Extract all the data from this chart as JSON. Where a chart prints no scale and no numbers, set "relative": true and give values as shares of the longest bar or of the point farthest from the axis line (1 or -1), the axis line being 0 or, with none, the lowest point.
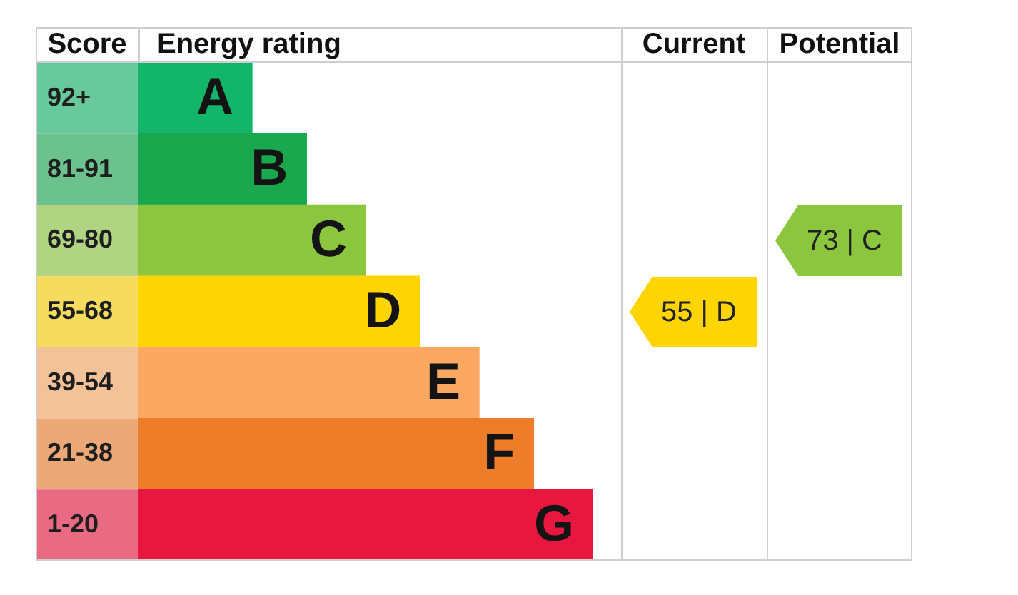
{
  "chart_data": {
    "type": "bar",
    "orientation": "horizontal",
    "relative": true,
    "xlabel": "Energy rating",
    "ylabel": "Score",
    "categories": [
      "92+",
      "81-91",
      "69-80",
      "55-68",
      "39-54",
      "21-38",
      "1-20"
    ],
    "values": [
      0.25,
      0.37,
      0.5,
      0.62,
      0.75,
      0.87,
      1
    ],
    "colors": [
      "#13b56a",
      "#1aa84f",
      "#8cc63f",
      "#fed403",
      "#fba862",
      "#ee7d2a",
      "#e8173f"
    ],
    "annotations": [
      {
        "text": "A",
        "x": 0.25,
        "y": "92+"
      },
      {
        "text": "B",
        "x": 0.37,
        "y": "81-91"
      },
      {
        "text": "C",
        "x": 0.5,
        "y": "69-80"
      },
      {
        "text": "D",
        "x": 0.62,
        "y": "55-68"
      },
      {
        "text": "E",
        "x": 0.75,
        "y": "39-54"
      },
      {
        "text": "F",
        "x": 0.87,
        "y": "21-38"
      },
      {
        "text": "G",
        "x": 1,
        "y": "1-20"
      },
      "Current",
      "55 | D",
      "Potential",
      "73 | C"
    ],
    "legend": false
  }
}
